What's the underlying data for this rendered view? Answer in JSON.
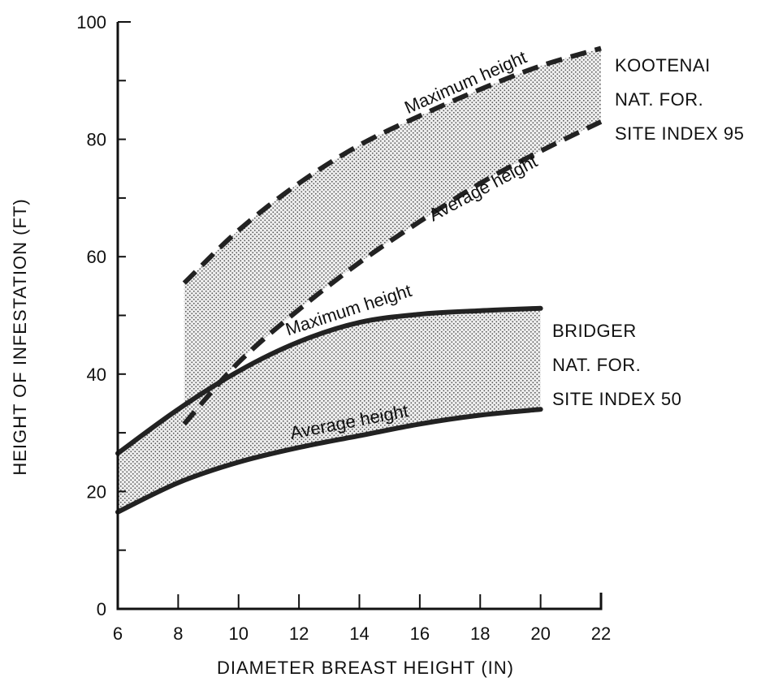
{
  "chart_data": {
    "type": "line",
    "title": "",
    "xlabel": "DIAMETER BREAST HEIGHT (IN)",
    "ylabel": "HEIGHT OF INFESTATION (FT)",
    "xlim": [
      6,
      22
    ],
    "ylim": [
      0,
      100
    ],
    "xticks": [
      6,
      8,
      10,
      12,
      14,
      16,
      18,
      20,
      22
    ],
    "yticks": [
      0,
      20,
      40,
      60,
      80,
      100
    ],
    "grid": false,
    "groups": [
      {
        "label_lines": [
          "KOOTENAI",
          "NAT. FOR.",
          "SITE INDEX 95"
        ],
        "line_style": "dashed",
        "series": [
          {
            "name": "Maximum height",
            "x": [
              8.2,
              10,
              12,
              14,
              16,
              18,
              20,
              22
            ],
            "y": [
              55.5,
              64.5,
              72.5,
              79,
              84,
              88.5,
              92.5,
              95.5
            ]
          },
          {
            "name": "Average height",
            "x": [
              8.2,
              10,
              12,
              14,
              16,
              18,
              20,
              22
            ],
            "y": [
              31.5,
              42,
              51,
              59,
              66,
              72.5,
              78,
              83
            ]
          }
        ]
      },
      {
        "label_lines": [
          "BRIDGER",
          "NAT. FOR.",
          "SITE INDEX 50"
        ],
        "line_style": "solid",
        "series": [
          {
            "name": "Maximum height",
            "x": [
              6,
              8,
              10,
              12,
              14,
              16,
              18,
              20
            ],
            "y": [
              26.5,
              34,
              40.5,
              45.5,
              48.8,
              50.2,
              50.8,
              51.2
            ]
          },
          {
            "name": "Average height",
            "x": [
              6,
              8,
              10,
              12,
              14,
              16,
              18,
              20
            ],
            "y": [
              16.5,
              21.5,
              25,
              27.5,
              29.5,
              31.5,
              33,
              34
            ]
          }
        ]
      }
    ]
  }
}
